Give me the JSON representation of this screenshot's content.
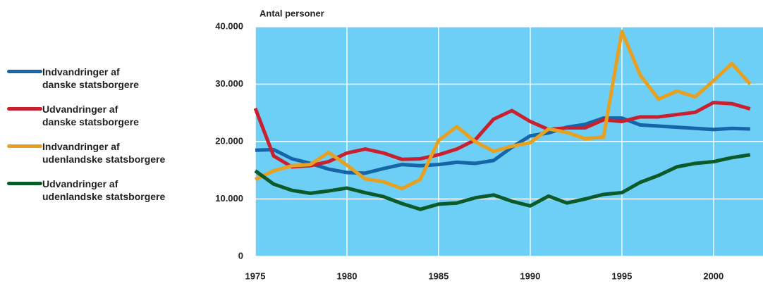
{
  "chart_data": {
    "type": "line",
    "ylabel": "Antal personer",
    "x": [
      1975,
      1976,
      1977,
      1978,
      1979,
      1980,
      1981,
      1982,
      1983,
      1984,
      1985,
      1986,
      1987,
      1988,
      1989,
      1990,
      1991,
      1992,
      1993,
      1994,
      1995,
      1996,
      1997,
      1998,
      1999,
      2000,
      2001,
      2002
    ],
    "series": [
      {
        "name": "Indvandringer af\ndanske statsborgere",
        "color": "#1565a8",
        "values": [
          18500,
          18600,
          17000,
          16200,
          15200,
          14600,
          14500,
          15300,
          16000,
          15800,
          16000,
          16400,
          16200,
          16700,
          19000,
          21000,
          21500,
          22500,
          23000,
          24100,
          24100,
          22900,
          22700,
          22500,
          22300,
          22100,
          22300,
          22200
        ]
      },
      {
        "name": "Udvandringer af\ndanske statsborgere",
        "color": "#c8202f",
        "values": [
          25800,
          17500,
          15600,
          15800,
          16500,
          18000,
          18700,
          18000,
          16900,
          17000,
          17700,
          18700,
          20300,
          23900,
          25400,
          23500,
          22100,
          22400,
          22400,
          23800,
          23500,
          24300,
          24300,
          24700,
          25100,
          26800,
          26600,
          25700
        ]
      },
      {
        "name": "Indvandringer af\nudenlandske statsborgere",
        "color": "#e8a020",
        "values": [
          13400,
          14900,
          15800,
          16000,
          18100,
          15900,
          13500,
          13000,
          11800,
          13400,
          20200,
          22600,
          20000,
          18300,
          19200,
          19800,
          22200,
          21600,
          20500,
          20800,
          39200,
          31600,
          27400,
          28800,
          27800,
          30600,
          33600,
          30000
        ]
      },
      {
        "name": "Udvandringer af\nudenlandske statsborgere",
        "color": "#0a5a2a",
        "values": [
          14900,
          12600,
          11500,
          11000,
          11400,
          11900,
          11100,
          10400,
          9200,
          8200,
          9100,
          9300,
          10200,
          10700,
          9600,
          8800,
          10500,
          9300,
          10000,
          10800,
          11100,
          12900,
          14100,
          15600,
          16200,
          16500,
          17200,
          17700
        ]
      }
    ],
    "xlim": [
      1975,
      2002.7
    ],
    "xticks": [
      1975,
      1980,
      1985,
      1990,
      1995,
      2000
    ],
    "ylim": [
      0,
      40000
    ],
    "yticks": [
      0,
      {
        "value": 10000,
        "label": "10.000"
      },
      {
        "value": 20000,
        "label": "20.000"
      },
      {
        "value": 30000,
        "label": "30.000"
      },
      {
        "value": 40000,
        "label": "40.000"
      }
    ],
    "grid": true,
    "legend": "left",
    "background": "#6dcff6"
  }
}
